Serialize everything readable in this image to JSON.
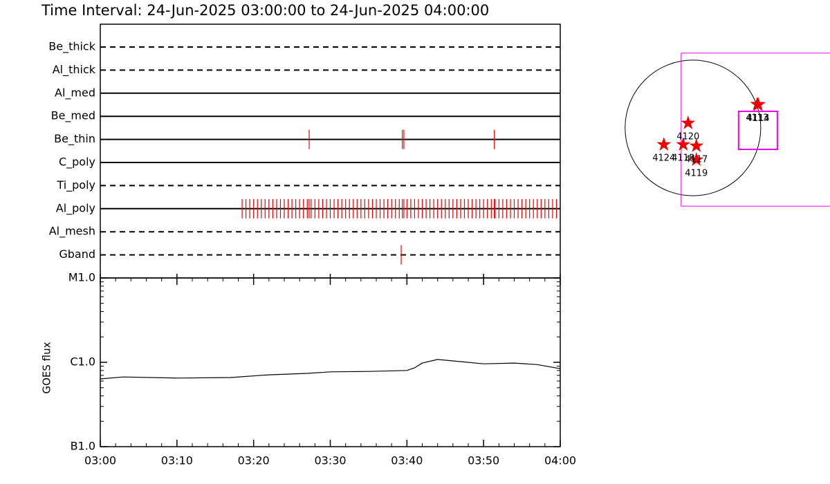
{
  "chart_data": [
    {
      "type": "timeline",
      "title": "Time Interval: 24-Jun-2025 03:00:00 to 24-Jun-2025 04:00:00",
      "xlim": [
        0,
        60
      ],
      "categories": [
        "Be_thick",
        "Al_thick",
        "Al_med",
        "Be_med",
        "Be_thin",
        "C_poly",
        "Ti_poly",
        "Al_poly",
        "Al_mesh",
        "Gband"
      ],
      "styles": [
        "dashed",
        "dashed",
        "solid",
        "solid",
        "solid",
        "solid",
        "dashed",
        "solid",
        "dashed",
        "dashed"
      ],
      "color": "#ee0000",
      "events": [
        [],
        [],
        [],
        [],
        [
          27.25,
          39.4,
          39.6,
          51.4
        ],
        [],
        [],
        [
          18.5,
          19.0,
          19.5,
          20.0,
          20.5,
          21.0,
          21.5,
          22.0,
          22.5,
          23.0,
          23.5,
          24.0,
          24.5,
          25.0,
          25.5,
          26.0,
          26.5,
          27.0,
          27.25,
          27.5,
          28.0,
          28.5,
          29.0,
          29.5,
          30.0,
          30.5,
          31.0,
          31.5,
          32.0,
          32.5,
          33.0,
          33.5,
          34.0,
          34.5,
          35.0,
          35.5,
          36.0,
          36.5,
          37.0,
          37.5,
          38.0,
          38.5,
          39.0,
          39.4,
          39.6,
          40.0,
          40.5,
          41.0,
          41.5,
          42.0,
          42.5,
          43.0,
          43.5,
          44.0,
          44.5,
          45.0,
          45.5,
          46.0,
          46.5,
          47.0,
          47.5,
          48.0,
          48.5,
          49.0,
          49.5,
          50.0,
          50.5,
          51.0,
          51.4,
          51.5,
          52.0,
          52.5,
          53.0,
          53.5,
          54.0,
          54.5,
          55.0,
          55.5,
          56.0,
          56.5,
          57.0,
          57.5,
          58.0,
          58.5,
          59.0,
          59.5
        ],
        [],
        [
          39.25
        ]
      ]
    },
    {
      "type": "line",
      "ylabel": "GOES flux",
      "log": true,
      "color": "#000000",
      "xlim": [
        0,
        60
      ],
      "xticks": [
        {
          "value": 0,
          "label": "03:00"
        },
        {
          "value": 10,
          "label": "03:10"
        },
        {
          "value": 20,
          "label": "03:20"
        },
        {
          "value": 30,
          "label": "03:30"
        },
        {
          "value": 40,
          "label": "03:40"
        },
        {
          "value": 50,
          "label": "03:50"
        },
        {
          "value": 60,
          "label": "04:00"
        }
      ],
      "xminorticks": [
        2,
        4,
        6,
        8,
        12,
        14,
        16,
        18,
        22,
        24,
        26,
        28,
        32,
        34,
        36,
        38,
        42,
        44,
        46,
        48,
        52,
        54,
        56,
        58
      ],
      "ylim": [
        1e-07,
        1e-05
      ],
      "yticks": [
        {
          "value": 1e-07,
          "label": "B1.0"
        },
        {
          "value": 1e-06,
          "label": "C1.0"
        },
        {
          "value": 1e-05,
          "label": "M1.0"
        }
      ],
      "yminorticks": [
        2e-07,
        3e-07,
        4e-07,
        5e-07,
        6e-07,
        7e-07,
        8e-07,
        9e-07,
        2e-06,
        3e-06,
        4e-06,
        5e-06,
        6e-06,
        7e-06,
        8e-06,
        9e-06
      ],
      "x": [
        0,
        3,
        10,
        17,
        22,
        27,
        30,
        35,
        40,
        41,
        42,
        44,
        47,
        50,
        54,
        57,
        60
      ],
      "values": [
        6.36e-07,
        6.7e-07,
        6.5e-07,
        6.6e-07,
        7.1e-07,
        7.4e-07,
        7.7e-07,
        7.8e-07,
        8e-07,
        8.6e-07,
        9.8e-07,
        1.08e-06,
        1.02e-06,
        9.6e-07,
        9.8e-07,
        9.4e-07,
        8.4e-07
      ]
    },
    {
      "type": "map",
      "xlim": [
        -1180,
        1920
      ],
      "ylim": [
        -1500,
        1500
      ],
      "sun_radius": 950,
      "fov_color": "#ee00ee",
      "fov": [
        {
          "x": 906,
          "y": -24,
          "width": 2142,
          "height": 2142
        },
        {
          "x": 911,
          "y": -34,
          "width": 543,
          "height": 533
        }
      ],
      "star_color": "#ee0000",
      "regions": [
        {
          "label": "4120",
          "x": -68,
          "y": 68
        },
        {
          "label": "4124",
          "x": -407,
          "y": -233
        },
        {
          "label": "4118",
          "x": -136,
          "y": -233
        },
        {
          "label": "4117",
          "x": 48,
          "y": -252
        },
        {
          "label": "4119",
          "x": 48,
          "y": -446
        },
        {
          "label": "4113",
          "x": 901,
          "y": 330
        },
        {
          "label": "4114",
          "x": 915,
          "y": 325
        }
      ]
    }
  ]
}
